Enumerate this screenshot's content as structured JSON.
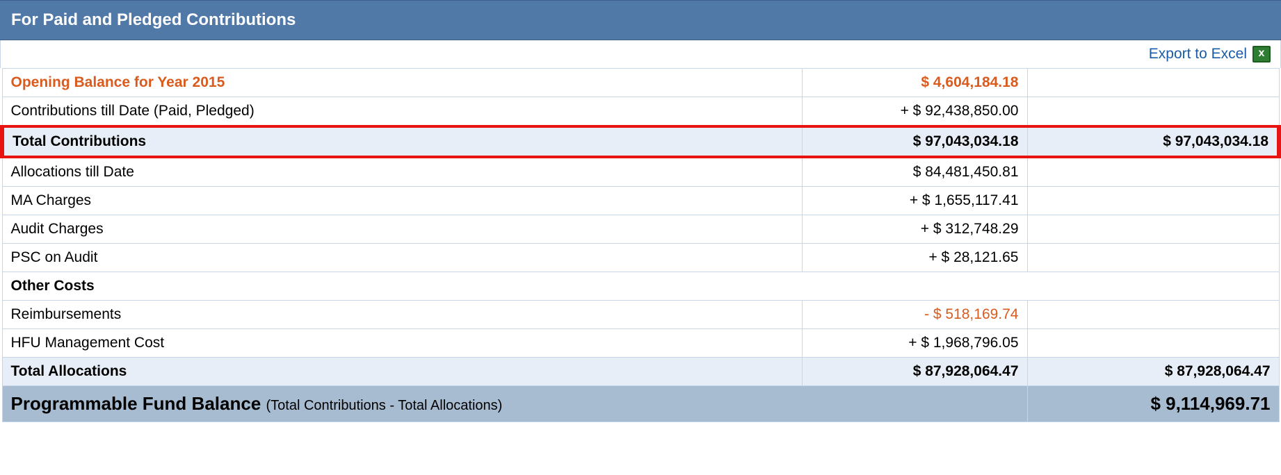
{
  "colors": {
    "header_bg": "#5179a8",
    "header_text": "#ffffff",
    "border": "#c7d6e7",
    "shaded_row": "#e7eef7",
    "highlight_border": "#e81313",
    "footer_bg": "#a7bbd1",
    "link": "#1a5ca8",
    "orange": "#d95b1e",
    "text": "#000000"
  },
  "header": {
    "title": "For Paid and Pledged Contributions"
  },
  "export": {
    "label": "Export to Excel"
  },
  "rows": {
    "opening": {
      "label": "Opening Balance for Year 2015",
      "value": "$ 4,604,184.18"
    },
    "contrib_till_date": {
      "label": "Contributions till Date (Paid, Pledged)",
      "value": "+ $ 92,438,850.00"
    },
    "total_contrib": {
      "label": "Total Contributions",
      "value1": "$ 97,043,034.18",
      "value2": "$ 97,043,034.18"
    },
    "alloc_till_date": {
      "label": "Allocations till Date",
      "value": "$ 84,481,450.81"
    },
    "ma_charges": {
      "label": "MA Charges",
      "value": "+ $ 1,655,117.41"
    },
    "audit_charges": {
      "label": "Audit Charges",
      "value": "+ $ 312,748.29"
    },
    "psc_audit": {
      "label": "PSC on Audit",
      "value": "+ $ 28,121.65"
    },
    "other_costs": {
      "label": "Other Costs"
    },
    "reimb": {
      "label": "Reimbursements",
      "value": "- $ 518,169.74"
    },
    "hfu_mgmt": {
      "label": "HFU Management Cost",
      "value": "+ $ 1,968,796.05"
    },
    "total_alloc": {
      "label": "Total Allocations",
      "value1": "$ 87,928,064.47",
      "value2": "$ 87,928,064.47"
    },
    "footer": {
      "label": "Programmable Fund Balance",
      "note": "(Total Contributions - Total Allocations)",
      "value": "$ 9,114,969.71"
    }
  }
}
